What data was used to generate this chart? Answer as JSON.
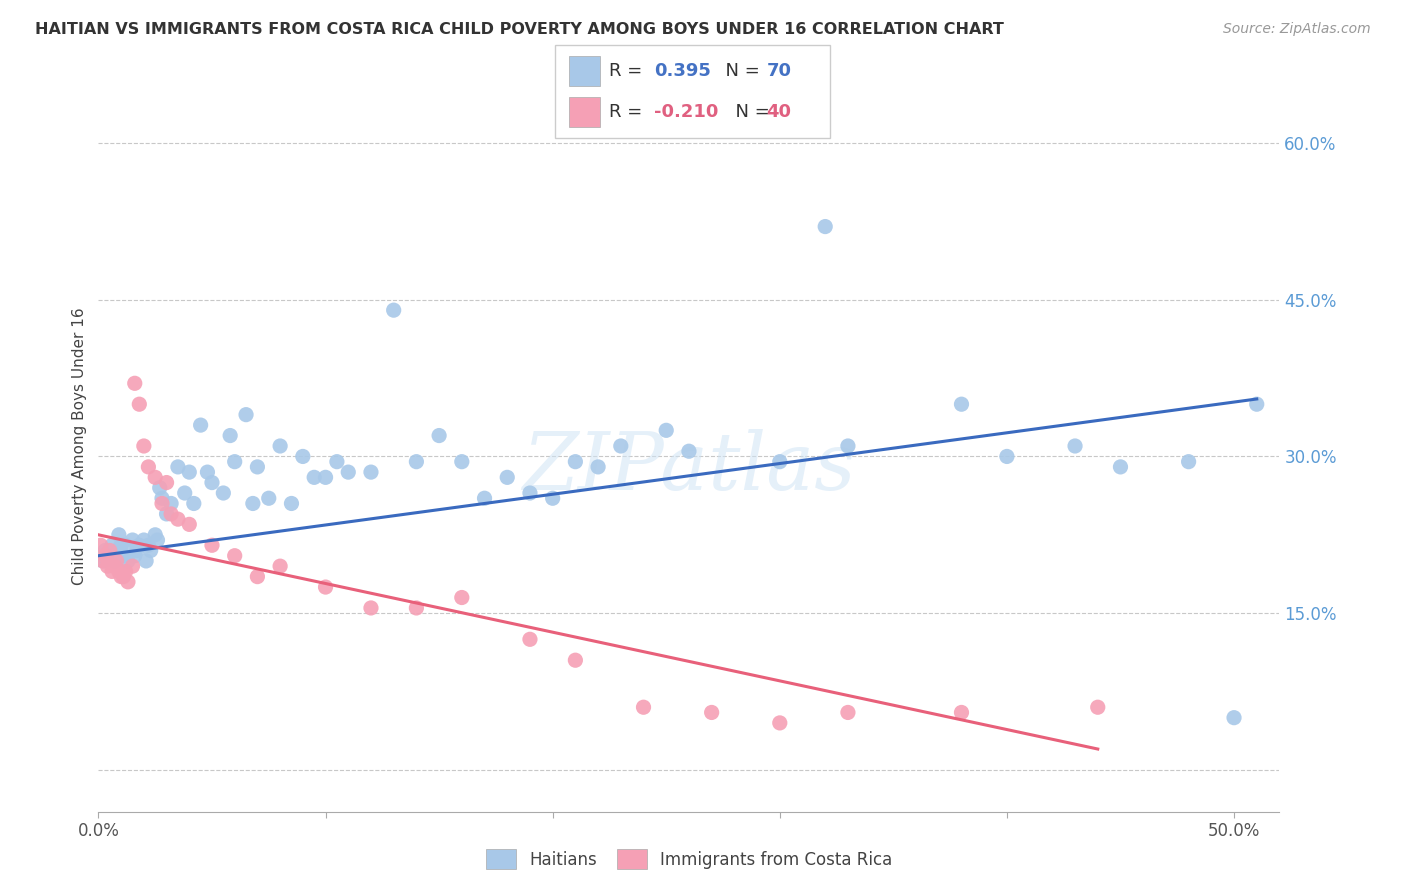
{
  "title": "HAITIAN VS IMMIGRANTS FROM COSTA RICA CHILD POVERTY AMONG BOYS UNDER 16 CORRELATION CHART",
  "source": "Source: ZipAtlas.com",
  "ylabel": "Child Poverty Among Boys Under 16",
  "xlim": [
    0.0,
    0.52
  ],
  "ylim": [
    -0.04,
    0.66
  ],
  "blue_color": "#a8c8e8",
  "pink_color": "#f5a0b5",
  "blue_line_color": "#3a6abf",
  "pink_line_color": "#e8607a",
  "R_blue": 0.395,
  "N_blue": 70,
  "R_pink": -0.21,
  "N_pink": 40,
  "watermark": "ZIPatlas",
  "background_color": "#ffffff",
  "grid_color": "#c8c8c8",
  "haitians_x": [
    0.002,
    0.003,
    0.005,
    0.006,
    0.007,
    0.008,
    0.009,
    0.01,
    0.011,
    0.012,
    0.013,
    0.015,
    0.016,
    0.017,
    0.018,
    0.02,
    0.021,
    0.022,
    0.023,
    0.025,
    0.026,
    0.027,
    0.028,
    0.03,
    0.032,
    0.035,
    0.038,
    0.04,
    0.042,
    0.045,
    0.048,
    0.05,
    0.055,
    0.058,
    0.06,
    0.065,
    0.068,
    0.07,
    0.075,
    0.08,
    0.085,
    0.09,
    0.095,
    0.1,
    0.105,
    0.11,
    0.12,
    0.13,
    0.14,
    0.15,
    0.16,
    0.17,
    0.18,
    0.19,
    0.2,
    0.21,
    0.22,
    0.23,
    0.25,
    0.26,
    0.3,
    0.32,
    0.33,
    0.38,
    0.4,
    0.43,
    0.45,
    0.48,
    0.5,
    0.51
  ],
  "haitians_y": [
    0.2,
    0.21,
    0.205,
    0.215,
    0.2,
    0.21,
    0.225,
    0.215,
    0.205,
    0.215,
    0.2,
    0.22,
    0.205,
    0.21,
    0.215,
    0.22,
    0.2,
    0.215,
    0.21,
    0.225,
    0.22,
    0.27,
    0.26,
    0.245,
    0.255,
    0.29,
    0.265,
    0.285,
    0.255,
    0.33,
    0.285,
    0.275,
    0.265,
    0.32,
    0.295,
    0.34,
    0.255,
    0.29,
    0.26,
    0.31,
    0.255,
    0.3,
    0.28,
    0.28,
    0.295,
    0.285,
    0.285,
    0.44,
    0.295,
    0.32,
    0.295,
    0.26,
    0.28,
    0.265,
    0.26,
    0.295,
    0.29,
    0.31,
    0.325,
    0.305,
    0.295,
    0.52,
    0.31,
    0.35,
    0.3,
    0.31,
    0.29,
    0.295,
    0.05,
    0.35
  ],
  "costarica_x": [
    0.001,
    0.002,
    0.003,
    0.004,
    0.005,
    0.006,
    0.007,
    0.008,
    0.009,
    0.01,
    0.011,
    0.012,
    0.013,
    0.015,
    0.016,
    0.018,
    0.02,
    0.022,
    0.025,
    0.028,
    0.03,
    0.032,
    0.035,
    0.04,
    0.05,
    0.06,
    0.07,
    0.08,
    0.1,
    0.12,
    0.14,
    0.16,
    0.19,
    0.21,
    0.24,
    0.27,
    0.3,
    0.33,
    0.38,
    0.44
  ],
  "costarica_y": [
    0.215,
    0.2,
    0.205,
    0.195,
    0.21,
    0.19,
    0.195,
    0.2,
    0.19,
    0.185,
    0.185,
    0.19,
    0.18,
    0.195,
    0.37,
    0.35,
    0.31,
    0.29,
    0.28,
    0.255,
    0.275,
    0.245,
    0.24,
    0.235,
    0.215,
    0.205,
    0.185,
    0.195,
    0.175,
    0.155,
    0.155,
    0.165,
    0.125,
    0.105,
    0.06,
    0.055,
    0.045,
    0.055,
    0.055,
    0.06
  ],
  "blue_line_x0": 0.0,
  "blue_line_y0": 0.205,
  "blue_line_x1": 0.51,
  "blue_line_y1": 0.355,
  "pink_line_x0": 0.0,
  "pink_line_y0": 0.225,
  "pink_line_x1": 0.44,
  "pink_line_y1": 0.02
}
